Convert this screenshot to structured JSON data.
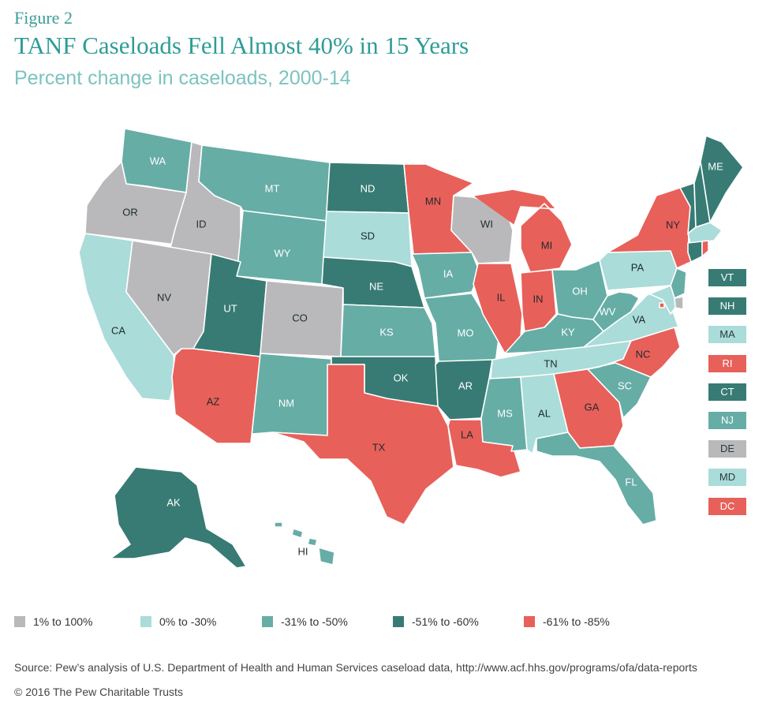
{
  "figure_label": "Figure 2",
  "title": "TANF Caseloads Fell Almost 40% in 15 Years",
  "subtitle": "Percent change in caseloads, 2000-14",
  "colors": {
    "gt1": "#b9b9bc",
    "c0to30": "#aadcd9",
    "c31to50": "#66ada6",
    "c51to60": "#377b74",
    "c61to85": "#e8605a",
    "title": "#2e9c96",
    "subtitle": "#7cc3bf"
  },
  "legend": [
    {
      "label": "1%  to 100%",
      "color": "#b9b9bc"
    },
    {
      "label": "0% to -30%",
      "color": "#aadcd9"
    },
    {
      "label": "-31% to -50%",
      "color": "#66ada6"
    },
    {
      "label": "-51% to -60%",
      "color": "#377b74"
    },
    {
      "label": "-61% to -85%",
      "color": "#e8605a"
    }
  ],
  "side_labels": [
    {
      "state": "VT",
      "category": "-51% to -60%"
    },
    {
      "state": "NH",
      "category": "-51% to -60%"
    },
    {
      "state": "MA",
      "category": "0% to -30%"
    },
    {
      "state": "RI",
      "category": "-61% to -85%"
    },
    {
      "state": "CT",
      "category": "-51% to -60%"
    },
    {
      "state": "NJ",
      "category": "-31% to -50%"
    },
    {
      "state": "DE",
      "category": "1%  to 100%"
    },
    {
      "state": "MD",
      "category": "0% to -30%"
    },
    {
      "state": "DC",
      "category": "-61% to -85%"
    }
  ],
  "states": {
    "WA": "-31% to -50%",
    "OR": "1%  to 100%",
    "CA": "0% to -30%",
    "ID": "1%  to 100%",
    "NV": "1%  to 100%",
    "MT": "-31% to -50%",
    "WY": "-31% to -50%",
    "UT": "-51% to -60%",
    "AZ": "-61% to -85%",
    "CO": "1%  to 100%",
    "NM": "-31% to -50%",
    "ND": "-51% to -60%",
    "SD": "0% to -30%",
    "NE": "-51% to -60%",
    "KS": "-31% to -50%",
    "OK": "-51% to -60%",
    "TX": "-61% to -85%",
    "MN": "-61% to -85%",
    "IA": "-31% to -50%",
    "MO": "-31% to -50%",
    "AR": "-51% to -60%",
    "LA": "-61% to -85%",
    "WI": "1%  to 100%",
    "IL": "-61% to -85%",
    "MI": "-61% to -85%",
    "IN": "-61% to -85%",
    "OH": "-31% to -50%",
    "KY": "-31% to -50%",
    "TN": "0% to -30%",
    "MS": "-31% to -50%",
    "AL": "0% to -30%",
    "GA": "-61% to -85%",
    "FL": "-31% to -50%",
    "SC": "-31% to -50%",
    "NC": "-61% to -85%",
    "VA": "0% to -30%",
    "WV": "-31% to -50%",
    "PA": "0% to -30%",
    "NY": "-61% to -85%",
    "ME": "-51% to -60%",
    "AK": "-51% to -60%",
    "HI": "-31% to -50%"
  },
  "source": "Source: Pew’s analysis of U.S. Department of Health and Human Services caseload data, http://www.acf.hhs.gov/programs/ofa/data-reports",
  "copyright": "© 2016 The Pew Charitable Trusts"
}
